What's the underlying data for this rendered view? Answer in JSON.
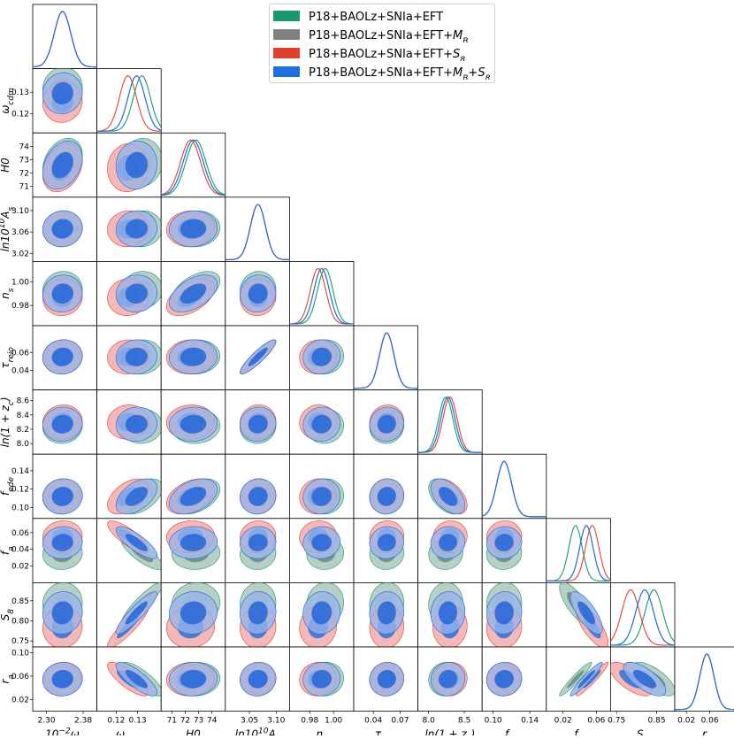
{
  "chart_data": {
    "type": "triangle-corner-plot",
    "parameters": [
      {
        "key": "omega_b",
        "label": "10⁻²ω_b",
        "label_html": "10<tspan baseline-shift='super' font-size='9'>−2</tspan>ω<tspan baseline-shift='sub' font-size='9'>b</tspan>",
        "ticks": [
          "2.30",
          "2.38"
        ],
        "range": [
          2.27,
          2.41
        ],
        "center": 2.335,
        "sigma": 0.018
      },
      {
        "key": "omega_cdm",
        "label": "ω_cdm",
        "label_html": "ω<tspan baseline-shift='sub' font-size='9'>cdm</tspan>",
        "ticks": [
          "0.12",
          "0.13"
        ],
        "range": [
          0.111,
          0.141
        ],
        "center": 0.1295,
        "sigma": 0.004
      },
      {
        "key": "H0",
        "label": "H0",
        "label_html": "H0",
        "ticks": [
          "71",
          "72",
          "73",
          "74"
        ],
        "range": [
          70.2,
          75.0
        ],
        "center": 72.6,
        "sigma": 0.75
      },
      {
        "key": "lnAs",
        "label": "ln10¹⁰A_s",
        "label_html": "ln10<tspan baseline-shift='super' font-size='9'>10</tspan>A<tspan baseline-shift='sub' font-size='9'>s</tspan>",
        "ticks": [
          "3.05",
          "3.10"
        ],
        "range": [
          3.005,
          3.125
        ],
        "center": 3.066,
        "sigma": 0.014
      },
      {
        "key": "ns",
        "label": "n_s",
        "label_html": "n<tspan baseline-shift='sub' font-size='9'>s</tspan>",
        "ticks": [
          "0.98",
          "1.00"
        ],
        "range": [
          0.963,
          1.017
        ],
        "center": 0.99,
        "sigma": 0.0065
      },
      {
        "key": "tau",
        "label": "τ_reio",
        "label_html": "τ<tspan baseline-shift='sub' font-size='9'>reio</tspan>",
        "ticks": [
          "0.04",
          "0.07"
        ],
        "range": [
          0.018,
          0.09
        ],
        "center": 0.055,
        "sigma": 0.008
      },
      {
        "key": "zc",
        "label": "ln(1 + z_c)",
        "label_html": "ln(1 + z<tspan baseline-shift='sub' font-size='9'>c</tspan>)",
        "ticks": [
          "8.0",
          "8.5"
        ],
        "range": [
          7.85,
          8.75
        ],
        "center": 8.27,
        "sigma": 0.1
      },
      {
        "key": "fede",
        "label": "f_ede",
        "label_html": "f<tspan baseline-shift='sub' font-size='9'>ede</tspan>",
        "ticks": [
          "0.10",
          "0.14"
        ],
        "range": [
          0.088,
          0.158
        ],
        "center": 0.112,
        "sigma": 0.008
      },
      {
        "key": "fa",
        "label": "f_a",
        "label_html": "f<tspan baseline-shift='sub' font-size='9'>a</tspan>",
        "ticks": [
          "0.02",
          "0.06"
        ],
        "range": [
          0.0,
          0.077
        ],
        "center": 0.048,
        "sigma": 0.008
      },
      {
        "key": "S8",
        "label": "S_8",
        "label_html": "S<tspan baseline-shift='sub' font-size='9'>8</tspan>",
        "ticks": [
          "0.75",
          "0.85"
        ],
        "range": [
          0.735,
          0.895
        ],
        "center": 0.82,
        "sigma": 0.022
      },
      {
        "key": "ra",
        "label": "r_a",
        "label_html": "r<tspan baseline-shift='sub' font-size='9'>a</tspan>",
        "ticks": [
          "0.02",
          "0.06"
        ],
        "range": [
          0.0,
          0.11
        ],
        "center": 0.055,
        "sigma": 0.012
      }
    ],
    "row_ticks": {
      "omega_cdm": [
        "0.12",
        "0.13"
      ],
      "H0": [
        "71",
        "72",
        "73",
        "74"
      ],
      "lnAs": [
        "3.02",
        "3.06",
        "3.10"
      ],
      "ns": [
        "0.98",
        "1.00"
      ],
      "tau": [
        "0.04",
        "0.06"
      ],
      "zc": [
        "8.0",
        "8.2",
        "8.4",
        "8.6"
      ],
      "fede": [
        "0.10",
        "0.12",
        "0.14"
      ],
      "fa": [
        "0.02",
        "0.04",
        "0.06"
      ],
      "S8": [
        "0.75",
        "0.80",
        "0.85"
      ],
      "ra": [
        "0.02",
        "0.06",
        "0.10"
      ]
    },
    "series": [
      {
        "name": "P18+BAOLz+SNIa+EFT",
        "name_html": "P18+BAOLz+SNIa+EFT",
        "color": "#1a9a6c",
        "fill_outer": "#9fbfb3",
        "fill_inner": "#6a8a80",
        "peak_shift": {
          "omega_cdm": 0.132,
          "H0": 72.8,
          "ns": 0.993,
          "fa": 0.035,
          "S8": 0.843,
          "zc": 8.24
        }
      },
      {
        "name": "P18+BAOLz+SNIa+EFT+M_B",
        "name_html": "P18+BAOLz+SNIa+EFT+<tspan font-style='italic'>M</tspan><tspan baseline-shift='sub' font-size='9' font-style='italic'>B</tspan>",
        "color": "#808080",
        "fill_outer": "#b8c4c0",
        "fill_inner": "#5e6e68"
      },
      {
        "name": "P18+BAOLz+SNIa+EFT+S_8",
        "name_html": "P18+BAOLz+SNIa+EFT+<tspan font-style='italic'>S</tspan><tspan baseline-shift='sub' font-size='9' font-style='italic'>8</tspan>",
        "color": "#e04030",
        "fill_outer": "#f0a0a0",
        "fill_inner": "#2f6fd6",
        "peak_shift": {
          "omega_cdm": 0.1255,
          "H0": 72.4,
          "ns": 0.987,
          "fa": 0.055,
          "S8": 0.785,
          "zc": 8.3
        }
      },
      {
        "name": "P18+BAOLz+SNIa+EFT+M_B+S_8",
        "name_html": "P18+BAOLz+SNIa+EFT+<tspan font-style='italic'>M</tspan><tspan baseline-shift='sub' font-size='9' font-style='italic'>B</tspan>+<tspan font-style='italic'>S</tspan><tspan baseline-shift='sub' font-size='9' font-style='italic'>8</tspan>",
        "color": "#1f6fe0",
        "fill_outer": "#9bb7ee",
        "fill_inner": "#2766d8"
      }
    ]
  }
}
